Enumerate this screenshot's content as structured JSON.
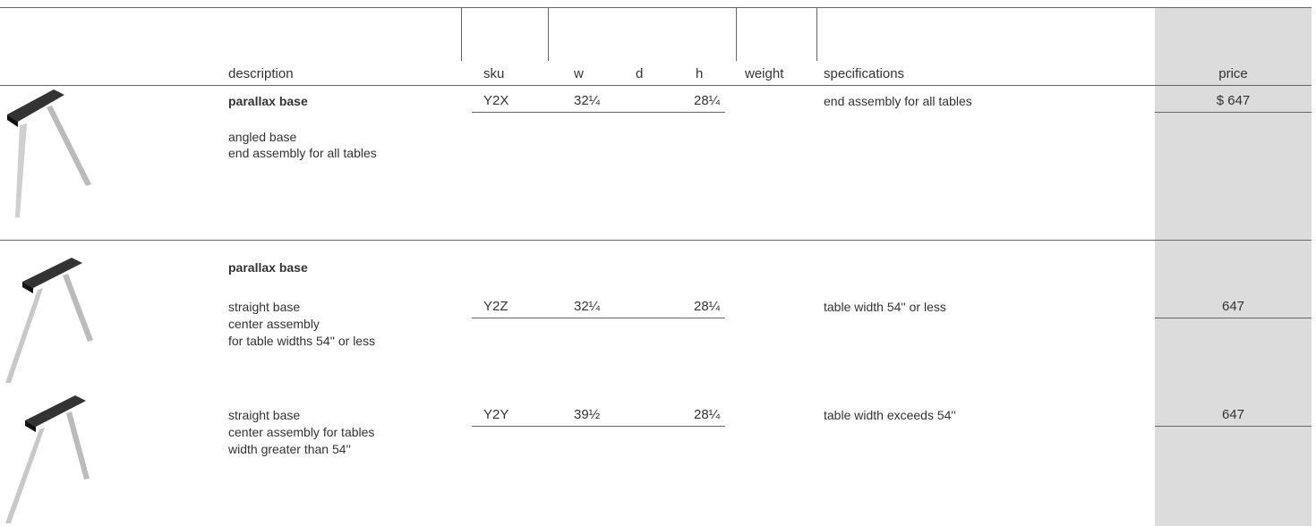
{
  "header": {
    "columns": [
      "description",
      "sku",
      "w",
      "d",
      "h",
      "weight",
      "specifications",
      "price"
    ]
  },
  "rows": [
    {
      "name": "parallax base",
      "description": [
        "angled base",
        "end assembly for all tables"
      ],
      "sku": "Y2X",
      "w": "32¼",
      "h": "28¼",
      "specifications": "end assembly for all tables",
      "price": "$ 647"
    },
    {
      "name": "parallax base",
      "description": [
        "straight base",
        "center assembly",
        "for table widths 54'' or less"
      ],
      "sku": "Y2Z",
      "w": "32¼",
      "h": "28¼",
      "specifications": "table width 54'' or less",
      "price": "647"
    },
    {
      "description": [
        "straight base",
        "center assembly for tables",
        "width greater than 54''"
      ],
      "sku": "Y2Y",
      "w": "39½",
      "h": "28¼",
      "specifications": "table width exceeds 54''",
      "price": "647"
    }
  ]
}
